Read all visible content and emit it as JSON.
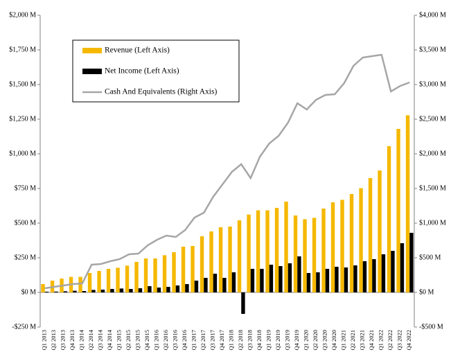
{
  "chart_data": {
    "type": "bar-line",
    "categories": [
      "Q1 2013",
      "Q2 2013",
      "Q3 2013",
      "Q4 2013",
      "Q1 2014",
      "Q2 2014",
      "Q3 2014",
      "Q4 2014",
      "Q1 2015",
      "Q2 2015",
      "Q3 2015",
      "Q4 2015",
      "Q1 2016",
      "Q2 2016",
      "Q3 2016",
      "Q4 2016",
      "Q1 2017",
      "Q2 2017",
      "Q3 2017",
      "Q4 2017",
      "Q1 2018",
      "Q2 2018",
      "Q3 2018",
      "Q4 2018",
      "Q1 2019",
      "Q2 2019",
      "Q3 2019",
      "Q4 2019",
      "Q1 2020",
      "Q2 2020",
      "Q3 2020",
      "Q4 2020",
      "Q1 2021",
      "Q2 2021",
      "Q3 2021",
      "Q4 2021",
      "Q1 2022",
      "Q2 2022",
      "Q3 2022",
      "Q4 2022"
    ],
    "series": [
      {
        "name": "Revenue (Left Axis)",
        "color": "#f5b800",
        "kind": "bar",
        "values": [
          60,
          85,
          100,
          112,
          112,
          140,
          155,
          170,
          178,
          193,
          220,
          245,
          245,
          268,
          290,
          330,
          335,
          405,
          440,
          470,
          475,
          520,
          562,
          592,
          592,
          610,
          655,
          555,
          528,
          538,
          605,
          650,
          668,
          710,
          752,
          825,
          880,
          1055,
          1180,
          1278
        ]
      },
      {
        "name": "Net Income (Left Axis)",
        "color": "#000000",
        "kind": "bar",
        "values": [
          5,
          6,
          8,
          12,
          10,
          18,
          20,
          25,
          28,
          25,
          30,
          45,
          35,
          40,
          50,
          60,
          85,
          105,
          135,
          105,
          145,
          -155,
          170,
          170,
          200,
          190,
          210,
          260,
          140,
          145,
          170,
          185,
          180,
          195,
          225,
          240,
          275,
          300,
          355,
          430
        ]
      },
      {
        "name": "Cash And Equivalents (Right Axis)",
        "color": "#a6a6a6",
        "kind": "line",
        "axis": "y2",
        "values": [
          60,
          80,
          100,
          120,
          130,
          400,
          410,
          450,
          480,
          550,
          560,
          680,
          760,
          820,
          800,
          900,
          1080,
          1150,
          1380,
          1560,
          1740,
          1850,
          1650,
          1960,
          2150,
          2260,
          2450,
          2730,
          2640,
          2780,
          2850,
          2860,
          3020,
          3270,
          3390,
          3410,
          3430,
          2900,
          2980,
          3030
        ]
      }
    ],
    "ylim": [
      -250,
      2000
    ],
    "yticks": [
      {
        "value": -250,
        "label": "-$250 M"
      },
      {
        "value": 0,
        "label": "$0 M"
      },
      {
        "value": 250,
        "label": "$250 M"
      },
      {
        "value": 500,
        "label": "$500 M"
      },
      {
        "value": 750,
        "label": "$750 M"
      },
      {
        "value": 1000,
        "label": "$1,000 M"
      },
      {
        "value": 1250,
        "label": "$1,250 M"
      },
      {
        "value": 1500,
        "label": "$1,500 M"
      },
      {
        "value": 1750,
        "label": "$1,750 M"
      },
      {
        "value": 2000,
        "label": "$2,000 M"
      }
    ],
    "y2lim": [
      -500,
      4000
    ],
    "y2ticks": [
      {
        "value": -500,
        "label": "-$500 M"
      },
      {
        "value": 0,
        "label": "$0 M"
      },
      {
        "value": 500,
        "label": "$500 M"
      },
      {
        "value": 1000,
        "label": "$1,000 M"
      },
      {
        "value": 1500,
        "label": "$1,500 M"
      },
      {
        "value": 2000,
        "label": "$2,000 M"
      },
      {
        "value": 2500,
        "label": "$2,500 M"
      },
      {
        "value": 3000,
        "label": "$3,000 M"
      },
      {
        "value": 3500,
        "label": "$3,500 M"
      },
      {
        "value": 4000,
        "label": "$4,000 M"
      }
    ],
    "grid": false,
    "legend": "upper left"
  }
}
